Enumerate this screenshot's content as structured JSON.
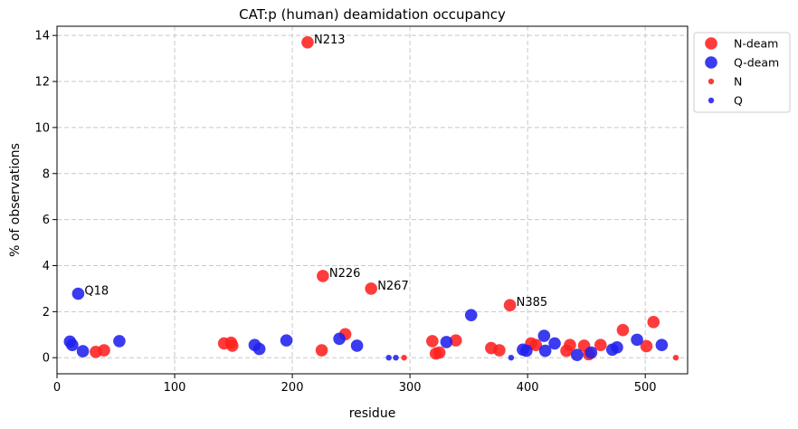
{
  "chart_data": {
    "type": "scatter",
    "title": "CAT:p (human) deamidation occupancy",
    "xlabel": "residue",
    "ylabel": "% of observations",
    "xlim": [
      0,
      536
    ],
    "ylim": [
      -0.7,
      14.4
    ],
    "xticks": [
      0,
      100,
      200,
      300,
      400,
      500
    ],
    "yticks": [
      0,
      2,
      4,
      6,
      8,
      10,
      12,
      14
    ],
    "grid": true,
    "legend_position": "outside-top-right",
    "colors": {
      "N": "#ff2020",
      "Q": "#2020ee"
    },
    "series": [
      {
        "name": "N-deam",
        "color": "#ff2020",
        "marker": "large",
        "points": [
          {
            "x": 33,
            "y": 0.25
          },
          {
            "x": 40,
            "y": 0.32
          },
          {
            "x": 142,
            "y": 0.62
          },
          {
            "x": 148,
            "y": 0.65
          },
          {
            "x": 149,
            "y": 0.52
          },
          {
            "x": 213,
            "y": 13.7
          },
          {
            "x": 225,
            "y": 0.32
          },
          {
            "x": 226,
            "y": 3.55
          },
          {
            "x": 245,
            "y": 1.02
          },
          {
            "x": 267,
            "y": 3.0
          },
          {
            "x": 319,
            "y": 0.72
          },
          {
            "x": 322,
            "y": 0.18
          },
          {
            "x": 325,
            "y": 0.22
          },
          {
            "x": 339,
            "y": 0.75
          },
          {
            "x": 369,
            "y": 0.42
          },
          {
            "x": 376,
            "y": 0.32
          },
          {
            "x": 385,
            "y": 2.28
          },
          {
            "x": 403,
            "y": 0.62
          },
          {
            "x": 407,
            "y": 0.55
          },
          {
            "x": 433,
            "y": 0.3
          },
          {
            "x": 436,
            "y": 0.55
          },
          {
            "x": 448,
            "y": 0.52
          },
          {
            "x": 452,
            "y": 0.15
          },
          {
            "x": 462,
            "y": 0.55
          },
          {
            "x": 481,
            "y": 1.2
          },
          {
            "x": 501,
            "y": 0.5
          },
          {
            "x": 507,
            "y": 1.55
          }
        ]
      },
      {
        "name": "Q-deam",
        "color": "#2020ee",
        "marker": "large",
        "points": [
          {
            "x": 11,
            "y": 0.7
          },
          {
            "x": 13,
            "y": 0.55
          },
          {
            "x": 18,
            "y": 2.78
          },
          {
            "x": 22,
            "y": 0.28
          },
          {
            "x": 53,
            "y": 0.72
          },
          {
            "x": 168,
            "y": 0.55
          },
          {
            "x": 172,
            "y": 0.38
          },
          {
            "x": 195,
            "y": 0.75
          },
          {
            "x": 240,
            "y": 0.82
          },
          {
            "x": 255,
            "y": 0.52
          },
          {
            "x": 331,
            "y": 0.68
          },
          {
            "x": 352,
            "y": 1.85
          },
          {
            "x": 396,
            "y": 0.35
          },
          {
            "x": 399,
            "y": 0.3
          },
          {
            "x": 414,
            "y": 0.95
          },
          {
            "x": 415,
            "y": 0.3
          },
          {
            "x": 423,
            "y": 0.62
          },
          {
            "x": 442,
            "y": 0.12
          },
          {
            "x": 454,
            "y": 0.22
          },
          {
            "x": 472,
            "y": 0.35
          },
          {
            "x": 476,
            "y": 0.45
          },
          {
            "x": 493,
            "y": 0.78
          },
          {
            "x": 514,
            "y": 0.55
          }
        ]
      },
      {
        "name": "N",
        "color": "#ff2020",
        "marker": "small",
        "points": [
          {
            "x": 295,
            "y": 0.0
          },
          {
            "x": 526,
            "y": 0.0
          }
        ]
      },
      {
        "name": "Q",
        "color": "#2020ee",
        "marker": "small",
        "points": [
          {
            "x": 282,
            "y": 0.0
          },
          {
            "x": 288,
            "y": 0.0
          },
          {
            "x": 386,
            "y": 0.0
          }
        ]
      }
    ],
    "annotations": [
      {
        "text": "N213",
        "x": 213,
        "y": 13.7
      },
      {
        "text": "N226",
        "x": 226,
        "y": 3.55
      },
      {
        "text": "N267",
        "x": 267,
        "y": 3.0
      },
      {
        "text": "Q18",
        "x": 18,
        "y": 2.78
      },
      {
        "text": "N385",
        "x": 385,
        "y": 2.28
      }
    ]
  }
}
